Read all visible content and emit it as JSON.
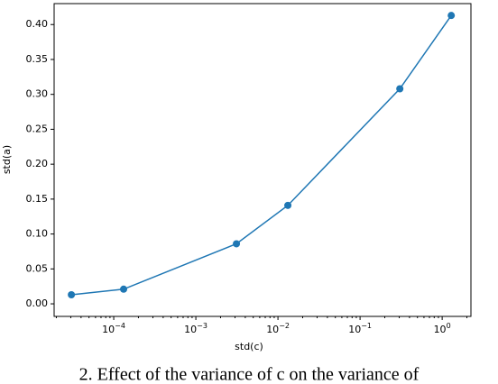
{
  "chart_data": {
    "type": "line",
    "x_label": "std(c)",
    "y_label": "std(a)",
    "x": [
      3.05e-05,
      0.000132,
      0.00312,
      0.0132,
      0.305,
      1.29
    ],
    "series": [
      {
        "color": "#1f77b4",
        "values": [
          0.013,
          0.021,
          0.086,
          0.141,
          0.308,
          0.413
        ]
      }
    ],
    "xscale": "log",
    "xlim": [
      1.88e-05,
      2.24
    ],
    "ylim": [
      -0.018,
      0.43
    ],
    "xticks": [
      {
        "value": 0.0001,
        "label": "10−4"
      },
      {
        "value": 0.001,
        "label": "10−3"
      },
      {
        "value": 0.01,
        "label": "10−2"
      },
      {
        "value": 0.1,
        "label": "10−1"
      },
      {
        "value": 1,
        "label": "100"
      }
    ],
    "yticks": [
      {
        "value": 0,
        "label": "0.00"
      },
      {
        "value": 0.05,
        "label": "0.05"
      },
      {
        "value": 0.1,
        "label": "0.10"
      },
      {
        "value": 0.15,
        "label": "0.15"
      },
      {
        "value": 0.2,
        "label": "0.20"
      },
      {
        "value": 0.25,
        "label": "0.25"
      },
      {
        "value": 0.3,
        "label": "0.30"
      },
      {
        "value": 0.35,
        "label": "0.35"
      },
      {
        "value": 0.4,
        "label": "0.40"
      }
    ],
    "caption": "2. Effect of the variance of c on the variance of"
  }
}
